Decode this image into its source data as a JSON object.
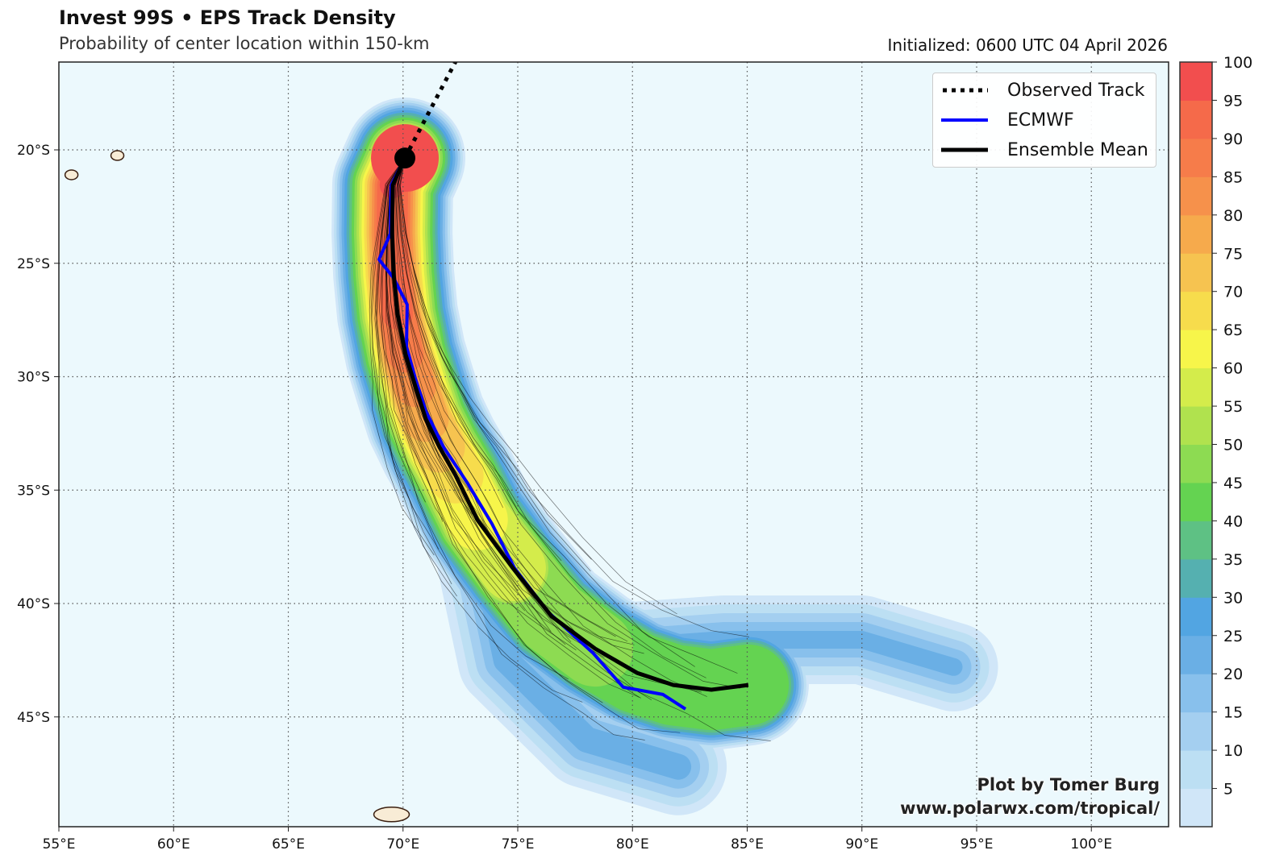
{
  "header": {
    "title": "Invest 99S • EPS Track Density",
    "subtitle": "Probability of center location within 150-km",
    "initialized": "Initialized: 0600 UTC 04 April 2026"
  },
  "legend": {
    "items": [
      {
        "label": "Observed Track",
        "color": "#000000",
        "style": "dotted"
      },
      {
        "label": "ECMWF",
        "color": "#0000ff",
        "style": "solid"
      },
      {
        "label": "Ensemble Mean",
        "color": "#000000",
        "style": "solid"
      }
    ]
  },
  "credits": {
    "line1": "Plot by Tomer Burg",
    "line2": "www.polarwx.com/tropical/"
  },
  "chart_data": {
    "type": "map",
    "title": "Invest 99S • EPS Track Density",
    "lon_range": [
      55,
      103.4
    ],
    "lat_range": [
      -49.9,
      -16.1
    ],
    "x_ticks": [
      "55°E",
      "60°E",
      "65°E",
      "70°E",
      "75°E",
      "80°E",
      "85°E",
      "90°E",
      "95°E",
      "100°E"
    ],
    "x_tick_values": [
      55,
      60,
      65,
      70,
      75,
      80,
      85,
      90,
      95,
      100
    ],
    "y_ticks": [
      "20°S",
      "25°S",
      "30°S",
      "35°S",
      "40°S",
      "45°S"
    ],
    "y_tick_values": [
      -20,
      -25,
      -30,
      -35,
      -40,
      -45
    ],
    "grid": true,
    "colorbar": {
      "levels": [
        0,
        5,
        10,
        15,
        20,
        25,
        30,
        35,
        40,
        45,
        50,
        55,
        60,
        65,
        70,
        75,
        80,
        85,
        90,
        95,
        100
      ],
      "labels": [
        "5",
        "10",
        "15",
        "20",
        "25",
        "30",
        "35",
        "40",
        "45",
        "50",
        "55",
        "60",
        "65",
        "70",
        "75",
        "80",
        "85",
        "90",
        "95",
        "100"
      ],
      "colors": [
        "#d0e6f8",
        "#bcdff3",
        "#a4cff0",
        "#88c0ec",
        "#6aafe5",
        "#52a5e2",
        "#55b0b0",
        "#5ec184",
        "#64d351",
        "#8ddb52",
        "#b0e24e",
        "#d4ec4b",
        "#f7f54a",
        "#f7dc4c",
        "#f6c350",
        "#f6aa4c",
        "#f6914b",
        "#f67c4a",
        "#f56a4a",
        "#f24e4e"
      ]
    },
    "observed_track": [
      [
        70.08,
        -20.36
      ],
      [
        72.4,
        -15.9
      ]
    ],
    "current_position": [
      70.08,
      -20.36
    ],
    "ensemble_mean": [
      [
        70.08,
        -20.36
      ],
      [
        69.55,
        -21.56
      ],
      [
        69.52,
        -23.69
      ],
      [
        69.59,
        -25.47
      ],
      [
        69.76,
        -27.24
      ],
      [
        70.11,
        -29.02
      ],
      [
        70.54,
        -30.44
      ],
      [
        70.99,
        -31.86
      ],
      [
        71.59,
        -33.11
      ],
      [
        72.29,
        -34.35
      ],
      [
        73.24,
        -36.31
      ],
      [
        74.79,
        -38.44
      ],
      [
        76.48,
        -40.57
      ],
      [
        78.37,
        -41.99
      ],
      [
        80.2,
        -43.06
      ],
      [
        81.78,
        -43.59
      ],
      [
        83.44,
        -43.8
      ],
      [
        85.05,
        -43.59
      ]
    ],
    "ecmwf": [
      [
        70.08,
        -20.36
      ],
      [
        69.48,
        -21.56
      ],
      [
        69.45,
        -23.69
      ],
      [
        68.95,
        -24.83
      ],
      [
        69.59,
        -25.65
      ],
      [
        70.18,
        -26.82
      ],
      [
        70.15,
        -28.67
      ],
      [
        70.54,
        -30.09
      ],
      [
        70.99,
        -31.51
      ],
      [
        71.77,
        -33.11
      ],
      [
        72.82,
        -34.71
      ],
      [
        73.87,
        -36.48
      ],
      [
        74.86,
        -38.44
      ],
      [
        76.34,
        -40.39
      ],
      [
        78.27,
        -42.17
      ],
      [
        79.6,
        -43.69
      ],
      [
        81.33,
        -44.01
      ],
      [
        82.31,
        -44.65
      ]
    ],
    "islands": [
      [
        55.55,
        -21.1
      ],
      [
        57.55,
        -20.25
      ],
      [
        69.5,
        -49.3
      ]
    ]
  }
}
